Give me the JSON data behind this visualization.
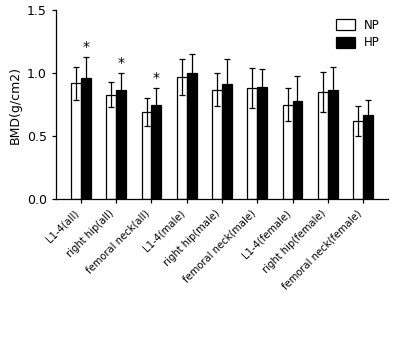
{
  "categories": [
    "L1-4(all)",
    "right hip(all)",
    "femoral neck(all)",
    "L1-4(male)",
    "right hip(male)",
    "femoral neck(male)",
    "L1-4(female)",
    "right hip(female)",
    "femoral neck(female)"
  ],
  "NP_values": [
    0.92,
    0.83,
    0.69,
    0.97,
    0.87,
    0.88,
    0.75,
    0.85,
    0.62
  ],
  "HP_values": [
    0.96,
    0.87,
    0.75,
    1.0,
    0.91,
    0.89,
    0.78,
    0.87,
    0.67
  ],
  "NP_errors": [
    0.13,
    0.1,
    0.11,
    0.14,
    0.13,
    0.16,
    0.13,
    0.16,
    0.12
  ],
  "HP_errors": [
    0.17,
    0.13,
    0.13,
    0.15,
    0.2,
    0.14,
    0.2,
    0.18,
    0.12
  ],
  "NP_color": "#ffffff",
  "HP_color": "#000000",
  "edge_color": "#000000",
  "ylabel": "BMD(g/cm2)",
  "ylim": [
    0.0,
    1.5
  ],
  "yticks": [
    0.0,
    0.5,
    1.0,
    1.5
  ],
  "significance": [
    true,
    true,
    true,
    false,
    false,
    false,
    false,
    false,
    false
  ],
  "bar_width": 0.28,
  "figsize": [
    4.0,
    3.43
  ],
  "dpi": 100
}
